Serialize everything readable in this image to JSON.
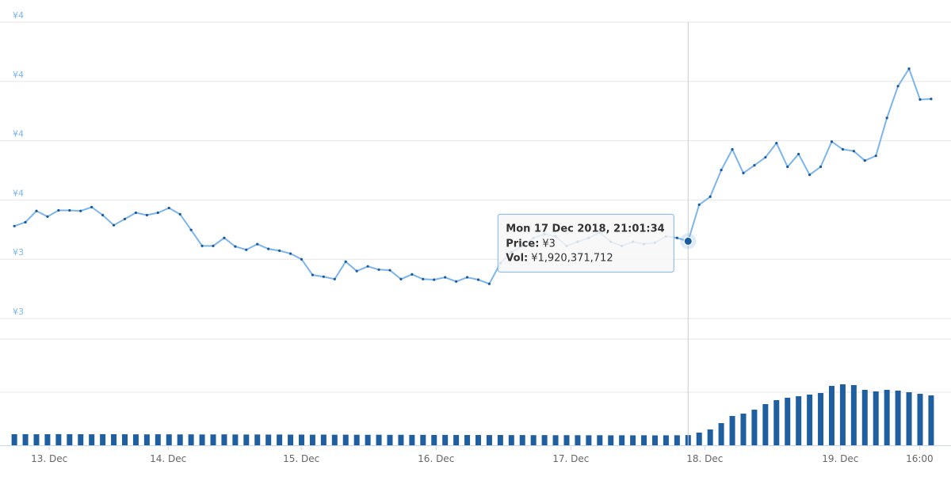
{
  "chart_data": [
    {
      "type": "line",
      "name": "price",
      "color": "#7cb5ec",
      "marker_color": "#1a5a9c",
      "xlim": [
        -1.3,
        84.8
      ],
      "ylim": [
        3.2,
        4.2
      ],
      "yticks": [
        {
          "value": 3.2,
          "label": "¥3"
        },
        {
          "value": 3.4,
          "label": "¥3"
        },
        {
          "value": 3.6,
          "label": "¥4"
        },
        {
          "value": 3.8,
          "label": "¥4"
        },
        {
          "value": 4.0,
          "label": "¥4"
        },
        {
          "value": 4.2,
          "label": "¥4"
        }
      ],
      "grid": true,
      "values": [
        3.512,
        3.525,
        3.563,
        3.544,
        3.565,
        3.565,
        3.563,
        3.576,
        3.549,
        3.515,
        3.536,
        3.557,
        3.549,
        3.557,
        3.573,
        3.552,
        3.499,
        3.445,
        3.445,
        3.472,
        3.443,
        3.432,
        3.451,
        3.435,
        3.429,
        3.419,
        3.4,
        3.347,
        3.341,
        3.333,
        3.392,
        3.36,
        3.376,
        3.365,
        3.363,
        3.333,
        3.349,
        3.333,
        3.331,
        3.339,
        3.325,
        3.339,
        3.331,
        3.317,
        3.387,
        3.424,
        3.445,
        3.472,
        3.485,
        3.477,
        3.445,
        3.459,
        3.472,
        3.491,
        3.459,
        3.445,
        3.459,
        3.451,
        3.456,
        3.477,
        3.472,
        3.461,
        3.584,
        3.611,
        3.701,
        3.771,
        3.691,
        3.717,
        3.744,
        3.792,
        3.712,
        3.755,
        3.685,
        3.712,
        3.797,
        3.771,
        3.765,
        3.733,
        3.749,
        3.877,
        3.984,
        4.043,
        3.939,
        3.941
      ],
      "tooltip": {
        "point": 61,
        "title": "Mon 17 Dec 2018, 21:01:34",
        "price_label": "Price:",
        "price": "¥3",
        "vol_label": "Vol:",
        "vol": "¥1,920,371,712"
      }
    },
    {
      "type": "bar",
      "name": "volume",
      "color": "#1f5fa0",
      "xlim": [
        -1.3,
        84.8
      ],
      "ylim": [
        0,
        20000000000
      ],
      "yticks": [
        10000000000,
        20000000000
      ],
      "grid": true,
      "xticks": [
        {
          "value": 3.16,
          "label": "13. Dec"
        },
        {
          "value": 13.92,
          "label": "14. Dec"
        },
        {
          "value": 25.98,
          "label": "15. Dec"
        },
        {
          "value": 38.18,
          "label": "16. Dec"
        },
        {
          "value": 50.38,
          "label": "17. Dec"
        },
        {
          "value": 62.51,
          "label": "18. Dec"
        },
        {
          "value": 74.78,
          "label": "19. Dec"
        },
        {
          "value": 81.96,
          "label": "16:00"
        }
      ],
      "values": [
        2090000000,
        2100000000,
        2080000000,
        2090000000,
        2110000000,
        2100000000,
        2090000000,
        2080000000,
        2100000000,
        2090000000,
        2080000000,
        2070000000,
        2060000000,
        2080000000,
        2070000000,
        2050000000,
        2060000000,
        2040000000,
        2050000000,
        2060000000,
        2040000000,
        2030000000,
        2040000000,
        2020000000,
        2030000000,
        2010000000,
        2020000000,
        2000000000,
        2010000000,
        1990000000,
        2000000000,
        1990000000,
        1980000000,
        1990000000,
        1970000000,
        1980000000,
        1960000000,
        1970000000,
        1950000000,
        1960000000,
        1950000000,
        1940000000,
        1950000000,
        1930000000,
        1940000000,
        1920000000,
        1930000000,
        1910000000,
        1920000000,
        1900000000,
        1910000000,
        1900000000,
        1890000000,
        1900000000,
        1880000000,
        1890000000,
        1880000000,
        1890000000,
        1870000000,
        1880000000,
        1890000000,
        1920371712,
        2390000000,
        2990000000,
        4180000000,
        5520000000,
        5970000000,
        6720000000,
        7760000000,
        8510000000,
        8960000000,
        9250000000,
        9550000000,
        9850000000,
        11190000000,
        11490000000,
        11340000000,
        10450000000,
        10150000000,
        10450000000,
        10300000000,
        10000000000,
        9700000000,
        9400000000
      ]
    }
  ]
}
